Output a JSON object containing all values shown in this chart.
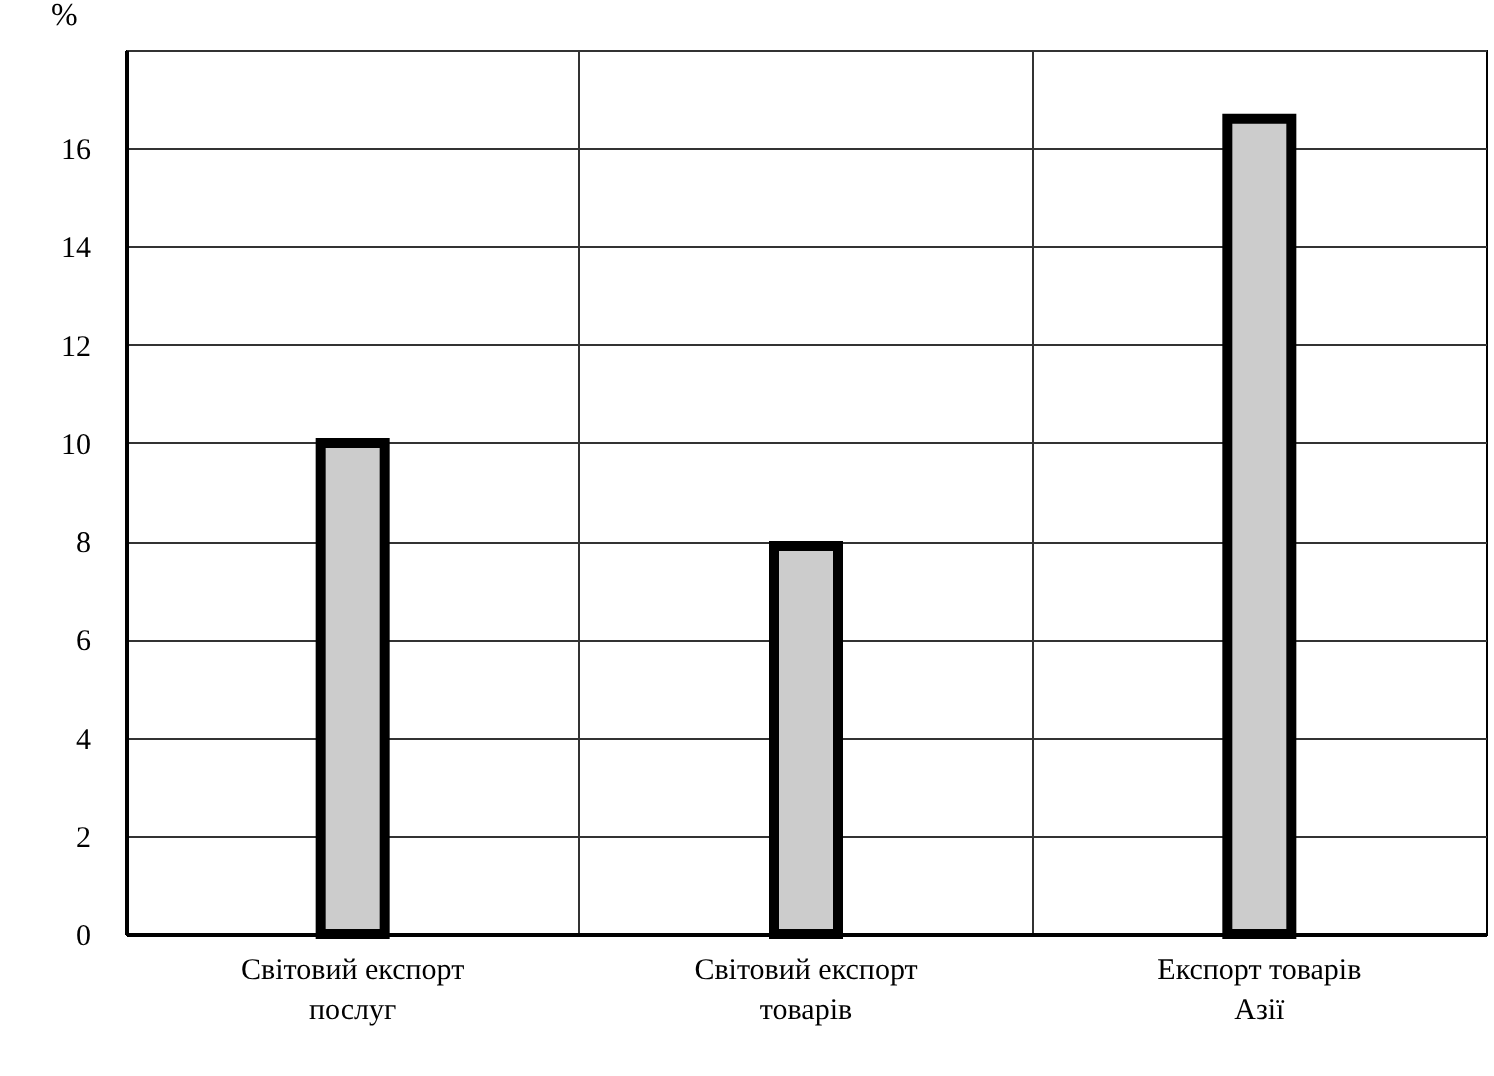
{
  "chart_data": {
    "type": "bar",
    "ylabel": "%",
    "categories": [
      "Світовий експорт послуг",
      "Світовий експорт товарів",
      "Експорт товарів Азії"
    ],
    "values": [
      10,
      7.9,
      16.6
    ],
    "color": "#cccccc",
    "ylim": [
      0,
      18
    ],
    "yticks": [
      0,
      2,
      4,
      6,
      8,
      10,
      12,
      14,
      16,
      {
        "value": 18,
        "label": null
      }
    ],
    "grid": true
  }
}
